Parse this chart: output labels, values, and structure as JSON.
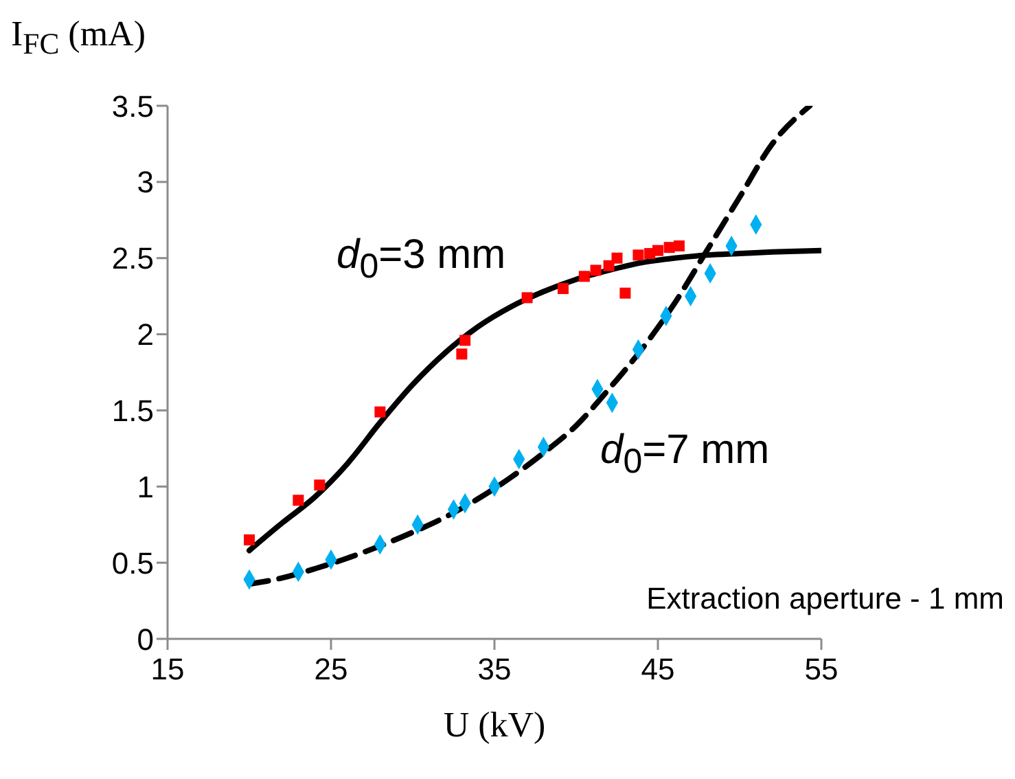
{
  "chart_data": {
    "type": "scatter",
    "xlabel": "U (kV)",
    "ylabel": "I$_{FC}$ (mA)",
    "xlim": [
      15,
      55
    ],
    "xticks": [
      15,
      25,
      35,
      45,
      55
    ],
    "ylim": [
      0,
      3.5
    ],
    "yticks": [
      0,
      0.5,
      1,
      1.5,
      2,
      2.5,
      3,
      3.5
    ],
    "grid": false,
    "series": [
      {
        "marker": "square",
        "color": "#ff0000",
        "x": [
          20,
          23,
          24.3,
          28,
          33,
          33.2,
          37,
          39.2,
          40.5,
          41.2,
          42,
          42.5,
          43,
          43.8,
          44.5,
          45,
          45.7,
          46.3
        ],
        "values": [
          0.65,
          0.91,
          1.01,
          1.49,
          1.87,
          1.96,
          2.24,
          2.3,
          2.38,
          2.42,
          2.45,
          2.5,
          2.27,
          2.52,
          2.53,
          2.55,
          2.57,
          2.58
        ]
      },
      {
        "marker": "diamond",
        "color": "#00b0f0",
        "x": [
          20,
          23,
          25,
          28,
          30.3,
          32.5,
          33.2,
          35,
          36.5,
          38,
          41.3,
          42.2,
          43.8,
          45.5,
          47,
          48.2,
          49.5,
          51
        ],
        "values": [
          0.39,
          0.44,
          0.52,
          0.62,
          0.75,
          0.85,
          0.89,
          1.0,
          1.18,
          1.26,
          1.64,
          1.55,
          1.9,
          2.12,
          2.25,
          2.4,
          2.58,
          2.72
        ]
      },
      {
        "type": "line",
        "marker": "none",
        "line_style": "solid",
        "color": "#000000",
        "x": [
          20,
          22,
          24,
          26,
          28,
          30,
          32,
          34,
          36,
          38,
          40,
          42,
          44,
          46,
          48,
          50,
          52,
          55
        ],
        "values": [
          0.58,
          0.76,
          0.93,
          1.15,
          1.42,
          1.67,
          1.88,
          2.05,
          2.18,
          2.28,
          2.36,
          2.42,
          2.47,
          2.5,
          2.52,
          2.53,
          2.54,
          2.55
        ]
      },
      {
        "type": "line",
        "marker": "none",
        "line_style": "dashed",
        "color": "#000000",
        "x": [
          20,
          22,
          24,
          26,
          28,
          30,
          32,
          34,
          36,
          38,
          40,
          42,
          44,
          46,
          48,
          50,
          52,
          54.3
        ],
        "values": [
          0.36,
          0.4,
          0.46,
          0.53,
          0.61,
          0.7,
          0.8,
          0.92,
          1.06,
          1.22,
          1.4,
          1.64,
          1.9,
          2.2,
          2.55,
          2.9,
          3.25,
          3.5
        ]
      }
    ],
    "annotations": [
      "d$_{0}$=3 mm",
      "d$_{0}$=7 mm",
      "Extraction aperture - 1 mm"
    ]
  }
}
